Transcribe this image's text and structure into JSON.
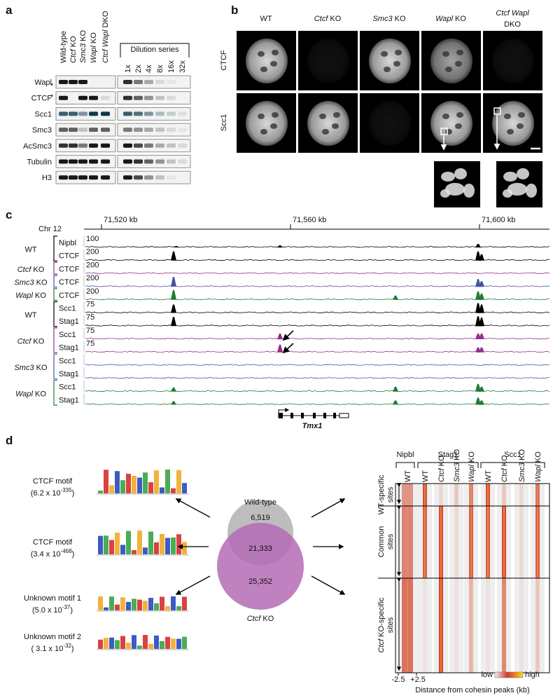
{
  "panel_a": {
    "letter": "a",
    "lanes": [
      "Wild-type",
      {
        "i": "Ctcf",
        "t": " KO"
      },
      {
        "i": "Smc3",
        "t": " KO"
      },
      {
        "i": "Wapl",
        "t": " KO"
      },
      {
        "i": "Ctcf Wapl",
        "t": " DKO"
      }
    ],
    "dilution_title": "Dilution series",
    "dilutions": [
      "1x",
      "2x",
      "4x",
      "8x",
      "16x",
      "32x"
    ],
    "rows": [
      "Wapl",
      "CTCF",
      "Scc1",
      "Smc3",
      "AcSmc3",
      "Tubulin",
      "H3"
    ],
    "markers": [
      "*",
      "*"
    ]
  },
  "panel_b": {
    "letter": "b",
    "columns": [
      "WT",
      {
        "i": "Ctcf",
        "t": " KO"
      },
      {
        "i": "Smc3",
        "t": " KO"
      },
      {
        "i": "Wapl",
        "t": " KO"
      },
      {
        "i": "Ctcf Wapl",
        "t": "DKO"
      }
    ],
    "rows": [
      "CTCF",
      "Scc1"
    ]
  },
  "panel_c": {
    "letter": "c",
    "chromosome": "Chr 12",
    "coordinates": [
      "71,520 kb",
      "71,560 kb",
      "71,600 kb"
    ],
    "groups": [
      {
        "label": "WT",
        "color": "#000000",
        "tracks": [
          {
            "name": "Nipbl",
            "scale": 100
          },
          {
            "name": "CTCF",
            "scale": 200
          }
        ]
      },
      {
        "label": {
          "i": "Ctcf",
          "t": " KO"
        },
        "color": "#952d8f",
        "tracks": [
          {
            "name": "CTCF",
            "scale": 200
          }
        ]
      },
      {
        "label": {
          "i": "Smc3",
          "t": " KO"
        },
        "color": "#4654a5",
        "tracks": [
          {
            "name": "CTCF",
            "scale": 200
          }
        ]
      },
      {
        "label": {
          "i": "Wapl",
          "t": " KO"
        },
        "color": "#237a35",
        "tracks": [
          {
            "name": "CTCF",
            "scale": 200
          }
        ]
      },
      {
        "label": "WT",
        "color": "#000000",
        "tracks": [
          {
            "name": "Scc1",
            "scale": 75
          },
          {
            "name": "Stag1",
            "scale": 75
          }
        ]
      },
      {
        "label": {
          "i": "Ctcf",
          "t": " KO"
        },
        "color": "#952d8f",
        "tracks": [
          {
            "name": "Scc1",
            "scale": 75
          },
          {
            "name": "Stag1",
            "scale": 75
          }
        ]
      },
      {
        "label": {
          "i": "Smc3",
          "t": " KO"
        },
        "color": "#4654a5",
        "tracks": [
          {
            "name": "Scc1"
          },
          {
            "name": "Stag1"
          }
        ]
      },
      {
        "label": {
          "i": "Wapl",
          "t": " KO"
        },
        "color": "#237a35",
        "tracks": [
          {
            "name": "Scc1"
          },
          {
            "name": "Stag1"
          }
        ]
      }
    ],
    "gene": "Tmx1"
  },
  "panel_d": {
    "letter": "d",
    "motifs": [
      {
        "name": "CTCF motif",
        "p_open": "(6.2 x 10",
        "p_exp": "-335",
        "p_close": ")"
      },
      {
        "name": "CTCF motif",
        "p_open": "(3.4 x 10",
        "p_exp": "-468",
        "p_close": ")"
      },
      {
        "name": "Unknown motif 1",
        "p_open": "(5.0 x 10",
        "p_exp": "-37",
        "p_close": ")"
      },
      {
        "name": "Unknown motif 2",
        "p_open": "( 3.1 x 10",
        "p_exp": "-32",
        "p_close": ")"
      }
    ],
    "venn": {
      "set_a": "Wild-type",
      "set_b": {
        "i": "Ctcf",
        "t": " KO"
      },
      "only_a": "6,519",
      "both": "21,333",
      "only_b": "25,352"
    },
    "heatmap": {
      "groups": [
        {
          "name": "Nipbl",
          "columns": [
            "WT"
          ]
        },
        {
          "name": "Stag1",
          "columns": [
            "WT",
            {
              "i": "Ctcf",
              "t": " KO"
            },
            {
              "i": "Smc3",
              "t": " KO"
            },
            {
              "i": "Wapl",
              "t": " KO"
            }
          ]
        },
        {
          "name": "Scc1",
          "columns": [
            "WT",
            {
              "i": "Ctcf",
              "t": " KO"
            },
            {
              "i": "Smc3",
              "t": " KO"
            },
            {
              "i": "Wapl",
              "t": " KO"
            }
          ]
        }
      ],
      "row_labels": [
        {
          "lines": [
            "WT-specific",
            "sites"
          ]
        },
        {
          "lines": [
            "Common",
            "sites"
          ]
        },
        {
          "lines": [
            {
              "i": "Ctcf",
              "t": " KO-specific"
            },
            "sites"
          ]
        }
      ],
      "x_min": "-2.5",
      "x_max": "+2.5",
      "x_label": "Distance from cohesin peaks (kb)",
      "legend_low": "low",
      "legend_high": "high"
    }
  }
}
